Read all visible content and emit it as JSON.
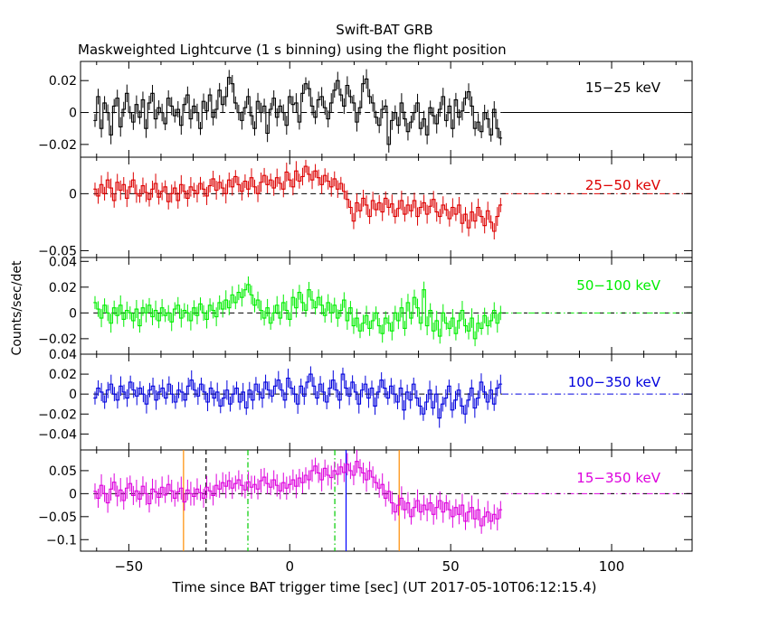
{
  "chart_data": {
    "type": "line",
    "title": "Swift-BAT GRB",
    "subtitle": "Maskweighted Lightcurve (1 s binning) using the flight position",
    "xlabel": "Time since BAT trigger time [sec] (UT 2017-05-10T06:12:15.4)",
    "ylabel": "Counts/sec/det",
    "xlim": [
      -65,
      125
    ],
    "x_ticks": [
      -50,
      0,
      50,
      100
    ],
    "x_tick_labels": [
      "−50",
      "0",
      "50",
      "100"
    ],
    "data_range": [
      -61,
      66
    ],
    "vertical_markers": [
      {
        "x": -33,
        "color": "#ff8c00",
        "style": "solid"
      },
      {
        "x": -26,
        "color": "#000000",
        "style": "dashed"
      },
      {
        "x": -13,
        "color": "#00cc00",
        "style": "dashdot"
      },
      {
        "x": 14,
        "color": "#00cc00",
        "style": "dashdot"
      },
      {
        "x": 17.5,
        "color": "#0000ff",
        "style": "solid"
      },
      {
        "x": 34,
        "color": "#ff8c00",
        "style": "solid"
      }
    ],
    "panels": [
      {
        "name": "15-25 keV",
        "label": "15−25 keV",
        "color": "#000000",
        "ylim": [
          -0.028,
          0.032
        ],
        "y_ticks": [
          -0.02,
          0,
          0.02
        ],
        "y_tick_labels": [
          "−0.02",
          "0",
          "0.02"
        ],
        "y": [
          -0.005,
          0.01,
          -0.01,
          0.006,
          0.0,
          -0.014,
          0.004,
          0.009,
          -0.009,
          0.002,
          0.012,
          0.0,
          -0.006,
          0.005,
          -0.003,
          0.008,
          -0.01,
          0.006,
          0.012,
          -0.004,
          0.003,
          0.0,
          -0.007,
          0.009,
          0.004,
          -0.002,
          0.002,
          -0.008,
          0.005,
          0.011,
          -0.004,
          0.004,
          0.0,
          -0.01,
          0.007,
          0.001,
          0.011,
          -0.003,
          0.002,
          0.014,
          0.005,
          0.01,
          0.022,
          0.018,
          0.006,
          0.0,
          -0.005,
          0.003,
          0.01,
          -0.002,
          -0.01,
          0.007,
          0.0,
          0.004,
          -0.013,
          0.002,
          0.009,
          -0.003,
          0.004,
          0.0,
          -0.008,
          0.01,
          0.005,
          0.006,
          -0.006,
          0.012,
          0.018,
          0.015,
          0.004,
          -0.003,
          0.008,
          0.01,
          0.003,
          -0.004,
          0.006,
          0.014,
          0.02,
          0.011,
          0.004,
          0.017,
          0.01,
          0.006,
          -0.006,
          0.003,
          0.018,
          0.021,
          0.01,
          0.006,
          -0.003,
          -0.008,
          0.002,
          0.004,
          -0.02,
          -0.005,
          0.0,
          -0.008,
          0.006,
          -0.004,
          -0.012,
          -0.006,
          0.0,
          0.006,
          -0.01,
          -0.004,
          -0.014,
          0.003,
          -0.002,
          -0.007,
          0.002,
          0.01,
          -0.005,
          0.004,
          -0.01,
          0.008,
          -0.003,
          0.001,
          0.009,
          0.013,
          0.004,
          -0.01,
          -0.006,
          -0.012,
          0.0,
          -0.004,
          -0.014,
          0.002,
          -0.01,
          -0.016
        ]
      },
      {
        "name": "25-50 keV",
        "label": "25−50 keV",
        "color": "#dd0000",
        "ylim": [
          -0.056,
          0.032
        ],
        "y_ticks": [
          -0.05,
          0
        ],
        "y_tick_labels": [
          "−0.05",
          "0"
        ],
        "y": [
          0.004,
          -0.002,
          0.008,
          0.0,
          0.012,
          0.005,
          -0.006,
          0.01,
          0.003,
          0.008,
          -0.004,
          0.006,
          0.012,
          0.0,
          -0.002,
          0.007,
          0.001,
          -0.005,
          0.004,
          0.009,
          -0.003,
          0.002,
          0.006,
          -0.007,
          0.0,
          0.005,
          -0.006,
          0.008,
          0.002,
          -0.004,
          0.006,
          0.003,
          0.0,
          0.009,
          0.004,
          -0.002,
          0.007,
          0.013,
          0.003,
          0.01,
          0.005,
          0.0,
          0.012,
          0.006,
          0.015,
          0.008,
          0.002,
          0.011,
          0.004,
          0.014,
          0.006,
          0.0,
          0.01,
          0.016,
          0.008,
          0.012,
          0.005,
          0.014,
          0.009,
          0.004,
          0.019,
          0.012,
          0.006,
          0.02,
          0.011,
          0.015,
          0.024,
          0.017,
          0.012,
          0.02,
          0.014,
          0.008,
          0.016,
          0.011,
          0.006,
          0.013,
          0.004,
          0.009,
          0.002,
          -0.005,
          -0.012,
          -0.024,
          -0.008,
          -0.015,
          -0.004,
          -0.01,
          -0.02,
          -0.006,
          -0.014,
          -0.008,
          -0.016,
          -0.004,
          -0.012,
          -0.009,
          -0.02,
          -0.013,
          -0.006,
          -0.018,
          -0.01,
          -0.015,
          -0.006,
          -0.02,
          -0.012,
          -0.008,
          -0.018,
          -0.011,
          -0.005,
          -0.016,
          -0.02,
          -0.01,
          -0.014,
          -0.022,
          -0.012,
          -0.018,
          -0.01,
          -0.026,
          -0.018,
          -0.03,
          -0.016,
          -0.024,
          -0.012,
          -0.02,
          -0.028,
          -0.015,
          -0.025,
          -0.033,
          -0.02,
          -0.01
        ]
      },
      {
        "name": "50-100 keV",
        "label": "50−100 keV",
        "color": "#00ee00",
        "ylim": [
          -0.032,
          0.043
        ],
        "y_ticks": [
          -0.02,
          0,
          0.02,
          0.04
        ],
        "y_tick_labels": [
          "−0.02",
          "0",
          "0.02",
          "0.04"
        ],
        "y": [
          0.008,
          0.003,
          -0.004,
          0.006,
          0.0,
          -0.008,
          0.004,
          -0.002,
          0.006,
          -0.005,
          0.002,
          0.0,
          -0.006,
          0.003,
          -0.01,
          0.004,
          0.0,
          0.006,
          -0.003,
          0.002,
          -0.006,
          0.004,
          -0.002,
          0.0,
          -0.007,
          0.003,
          0.006,
          -0.004,
          0.002,
          0.0,
          -0.006,
          0.004,
          -0.002,
          0.007,
          0.0,
          -0.005,
          0.006,
          0.002,
          -0.003,
          0.008,
          0.003,
          0.01,
          0.004,
          0.014,
          0.008,
          0.016,
          0.012,
          0.018,
          0.022,
          0.014,
          0.006,
          0.01,
          0.002,
          -0.004,
          0.004,
          -0.008,
          0.0,
          0.006,
          -0.004,
          0.008,
          0.002,
          -0.005,
          0.012,
          0.004,
          0.016,
          0.008,
          0.002,
          0.018,
          0.01,
          0.004,
          0.012,
          0.006,
          -0.002,
          0.008,
          0.0,
          0.006,
          -0.004,
          0.002,
          0.01,
          -0.006,
          0.004,
          -0.01,
          -0.004,
          -0.014,
          -0.008,
          -0.002,
          -0.012,
          -0.006,
          0.0,
          -0.01,
          -0.016,
          -0.004,
          -0.008,
          -0.014,
          0.0,
          -0.006,
          0.004,
          -0.012,
          0.008,
          -0.004,
          0.012,
          0.004,
          -0.008,
          0.018,
          -0.01,
          0.002,
          -0.014,
          -0.006,
          -0.018,
          0.0,
          -0.008,
          -0.012,
          -0.004,
          -0.016,
          -0.006,
          0.002,
          -0.01,
          -0.014,
          -0.004,
          -0.02,
          -0.008,
          -0.012,
          -0.002,
          -0.01,
          -0.006,
          0.002,
          -0.008,
          0.0
        ]
      },
      {
        "name": "100-350 keV",
        "label": "100−350 keV",
        "color": "#0000dd",
        "ylim": [
          -0.056,
          0.04
        ],
        "y_ticks": [
          -0.04,
          -0.02,
          0,
          0.02,
          0.04
        ],
        "y_tick_labels": [
          "−0.04",
          "−0.02",
          "0",
          "0.02",
          "0.04"
        ],
        "y": [
          -0.004,
          0.006,
          0.002,
          -0.008,
          0.004,
          0.01,
          0.0,
          -0.006,
          0.008,
          0.002,
          -0.004,
          0.012,
          0.004,
          -0.002,
          0.006,
          0.0,
          -0.01,
          0.004,
          0.008,
          -0.006,
          0.002,
          0.006,
          -0.004,
          0.01,
          0.0,
          -0.008,
          0.004,
          0.002,
          -0.006,
          0.008,
          0.014,
          0.004,
          -0.002,
          0.01,
          0.002,
          -0.008,
          0.006,
          -0.004,
          0.002,
          -0.012,
          -0.004,
          0.004,
          -0.01,
          0.0,
          0.006,
          -0.008,
          0.002,
          -0.014,
          0.004,
          -0.006,
          0.01,
          0.002,
          -0.004,
          0.012,
          0.004,
          -0.002,
          0.008,
          0.014,
          0.004,
          -0.006,
          0.016,
          0.006,
          0.0,
          -0.01,
          0.008,
          -0.002,
          0.012,
          0.02,
          0.008,
          -0.004,
          0.01,
          0.002,
          -0.008,
          0.006,
          0.014,
          0.004,
          -0.006,
          0.02,
          0.006,
          -0.002,
          0.012,
          0.002,
          -0.01,
          0.004,
          0.01,
          -0.004,
          0.006,
          -0.012,
          0.002,
          0.014,
          0.006,
          -0.004,
          0.008,
          0.0,
          -0.008,
          0.006,
          -0.016,
          0.002,
          -0.006,
          0.01,
          -0.004,
          -0.012,
          -0.02,
          -0.008,
          0.004,
          -0.014,
          0.0,
          -0.024,
          -0.01,
          -0.004,
          0.008,
          -0.016,
          -0.006,
          0.004,
          -0.012,
          -0.02,
          -0.006,
          0.006,
          -0.014,
          -0.004,
          0.012,
          0.002,
          -0.008,
          0.004,
          -0.01,
          0.006,
          0.01
        ]
      },
      {
        "name": "15-350 keV",
        "label": "15−350 keV",
        "color": "#dd00dd",
        "ylim": [
          -0.125,
          0.095
        ],
        "y_ticks": [
          -0.1,
          -0.05,
          0,
          0.05
        ],
        "y_tick_labels": [
          "−0.1",
          "−0.05",
          "0",
          "0.05"
        ],
        "y": [
          0.005,
          -0.01,
          0.018,
          0.0,
          -0.02,
          0.01,
          0.025,
          -0.005,
          0.008,
          -0.015,
          0.012,
          0.022,
          -0.004,
          0.006,
          -0.012,
          0.016,
          0.0,
          -0.022,
          0.01,
          0.004,
          -0.008,
          0.014,
          -0.003,
          0.02,
          0.006,
          -0.01,
          0.004,
          0.012,
          -0.018,
          0.008,
          0.0,
          -0.006,
          0.01,
          0.002,
          -0.01,
          0.014,
          0.006,
          -0.004,
          0.018,
          0.01,
          0.024,
          0.016,
          0.028,
          0.012,
          0.022,
          0.03,
          0.018,
          0.008,
          0.026,
          0.014,
          0.02,
          0.01,
          0.028,
          0.036,
          0.022,
          0.014,
          0.03,
          0.018,
          0.006,
          0.024,
          0.012,
          0.02,
          0.03,
          0.016,
          0.034,
          0.024,
          0.04,
          0.03,
          0.05,
          0.06,
          0.045,
          0.03,
          0.055,
          0.04,
          0.035,
          0.05,
          0.042,
          0.058,
          0.046,
          0.064,
          0.05,
          0.04,
          0.07,
          0.056,
          0.045,
          0.03,
          0.05,
          0.036,
          0.024,
          0.012,
          0.02,
          -0.01,
          0.005,
          -0.02,
          -0.04,
          -0.025,
          -0.01,
          -0.035,
          -0.02,
          -0.05,
          -0.03,
          -0.015,
          -0.04,
          -0.025,
          -0.035,
          -0.02,
          -0.045,
          -0.03,
          -0.015,
          -0.04,
          -0.02,
          -0.035,
          -0.05,
          -0.03,
          -0.045,
          -0.025,
          -0.06,
          -0.04,
          -0.03,
          -0.055,
          -0.035,
          -0.07,
          -0.05,
          -0.04,
          -0.06,
          -0.045,
          -0.055,
          -0.035
        ]
      }
    ]
  }
}
